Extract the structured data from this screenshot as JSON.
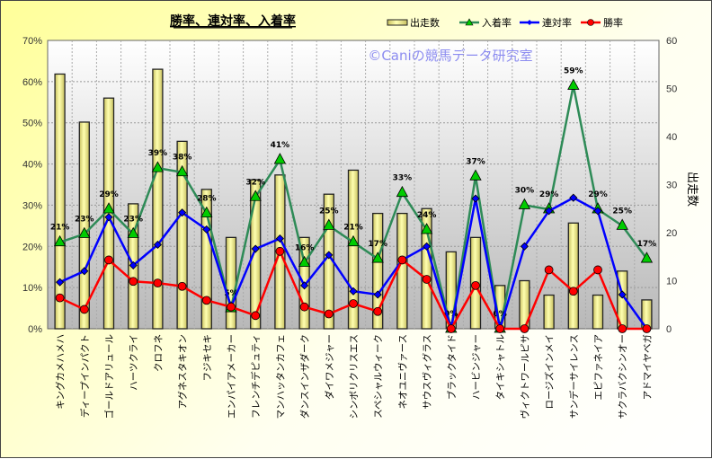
{
  "chart_data": {
    "type": "bar+line",
    "title": "勝率、連対率、入着率",
    "watermark": "©Caniの競馬データ研究室",
    "categories": [
      "キングカメハメハ",
      "ディープインパクト",
      "ゴールドアリュール",
      "ハーツクライ",
      "クロフネ",
      "アグネスタキオン",
      "フジキセキ",
      "エンパイアメーカー",
      "フレンチデピュティ",
      "マンハッタンカフェ",
      "ダンスインザダーク",
      "ダイワメジャー",
      "シンボリクリスエス",
      "スペシャルウィーク",
      "ネオユニヴァース",
      "サウスヴィグラス",
      "ブラックタイド",
      "ハービンジャー",
      "タイキシャトル",
      "ヴィクトワールピサ",
      "ロージズインメイ",
      "サンデーサイレンス",
      "エピファネイア",
      "サクラバクシンオー",
      "アドマイヤベガ"
    ],
    "series": [
      {
        "name": "出走数",
        "type": "bar",
        "axis": "right",
        "color": "#f5f08a",
        "values": [
          53,
          43,
          48,
          26,
          54,
          39,
          29,
          19,
          31,
          32,
          19,
          28,
          33,
          24,
          24,
          25,
          16,
          19,
          9,
          10,
          7,
          22,
          7,
          12,
          6
        ]
      },
      {
        "name": "入着率",
        "type": "line",
        "axis": "left",
        "color": "#2e8b57",
        "marker": "triangle",
        "marker_color": "#00cc00",
        "values": [
          21,
          23,
          29,
          23,
          39,
          38,
          28,
          5,
          32,
          41,
          16,
          25,
          21,
          17,
          33,
          24,
          0,
          37,
          0,
          30,
          29,
          59,
          29,
          25,
          17
        ],
        "data_labels": [
          "21%",
          "23%",
          "29%",
          "23%",
          "39%",
          "38%",
          "28%",
          "5%",
          "32%",
          "41%",
          "16%",
          "25%",
          "21%",
          "17%",
          "33%",
          "24%",
          "0%",
          "37%",
          "0%",
          "30%",
          "29%",
          "59%",
          "29%",
          "25%",
          "17%"
        ]
      },
      {
        "name": "連対率",
        "type": "line",
        "axis": "left",
        "color": "#0000ff",
        "marker": "diamond",
        "values": [
          11.3,
          14,
          27.1,
          15.4,
          20.4,
          28.2,
          24.1,
          5.3,
          19.4,
          21.9,
          10.5,
          17.9,
          9.1,
          8.3,
          16.7,
          20,
          0,
          31.6,
          0,
          20,
          28.6,
          31.8,
          28.6,
          8.3,
          0
        ]
      },
      {
        "name": "勝率",
        "type": "line",
        "axis": "left",
        "color": "#ff0000",
        "marker": "circle",
        "values": [
          7.5,
          4.7,
          16.7,
          11.5,
          11.1,
          10.3,
          6.9,
          5.3,
          3.2,
          18.8,
          5.3,
          3.6,
          6.1,
          4.2,
          16.7,
          12,
          0,
          10.5,
          0,
          0,
          14.3,
          9.1,
          14.3,
          0,
          0
        ]
      }
    ],
    "left_axis": {
      "ylim": [
        0,
        70
      ],
      "ticks": [
        "0%",
        "10%",
        "20%",
        "30%",
        "40%",
        "50%",
        "60%",
        "70%"
      ]
    },
    "right_axis": {
      "label": "出走数",
      "ylim": [
        0,
        60
      ],
      "ticks": [
        "0",
        "10",
        "20",
        "30",
        "40",
        "50",
        "60"
      ]
    },
    "legend": {
      "placement": "top-right",
      "items": [
        "出走数",
        "入着率",
        "連対率",
        "勝率"
      ]
    },
    "grid": true
  }
}
